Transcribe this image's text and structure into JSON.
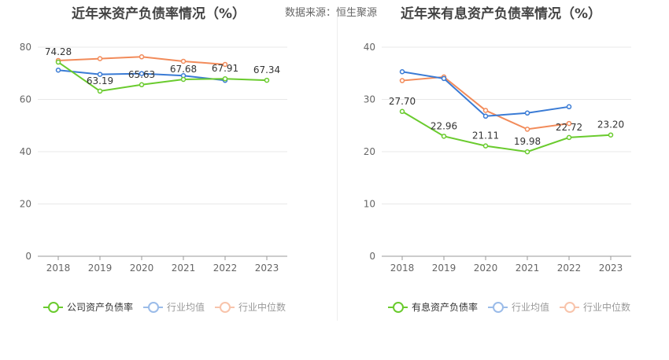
{
  "titles": {
    "left": "近年来资产负债率情况（%）",
    "right": "近年来有息资产负债率情况（%）"
  },
  "source_text": "数据来源：恒生聚源",
  "colors": {
    "primary": "#6acb2e",
    "average": "#3a7bd5",
    "median": "#f28b5a",
    "grid": "#e8e8e8",
    "axis": "#666666"
  },
  "legend": {
    "left": [
      "公司资产负债率",
      "行业均值",
      "行业中位数"
    ],
    "right": [
      "有息资产负债率",
      "行业均值",
      "行业中位数"
    ]
  },
  "chart_data": [
    {
      "type": "line",
      "title": "近年来资产负债率情况（%）",
      "categories": [
        "2018",
        "2019",
        "2020",
        "2021",
        "2022",
        "2023"
      ],
      "ylim": [
        0,
        80
      ],
      "yticks": [
        0,
        20,
        40,
        60,
        80
      ],
      "grid": true,
      "legend_position": "bottom",
      "series": [
        {
          "name": "公司资产负债率",
          "values": [
            74.28,
            63.19,
            65.63,
            67.68,
            67.91,
            67.34
          ],
          "labels": [
            "74.28",
            "63.19",
            "65.63",
            "67.68",
            "67.91",
            "67.34"
          ]
        },
        {
          "name": "行业均值",
          "values": [
            71.2,
            69.6,
            69.9,
            69.1,
            67.3,
            null
          ]
        },
        {
          "name": "行业中位数",
          "values": [
            74.9,
            75.6,
            76.3,
            74.6,
            73.4,
            null
          ]
        }
      ]
    },
    {
      "type": "line",
      "title": "近年来有息资产负债率情况（%）",
      "categories": [
        "2018",
        "2019",
        "2020",
        "2021",
        "2022",
        "2023"
      ],
      "ylim": [
        0,
        40
      ],
      "yticks": [
        0,
        10,
        20,
        30,
        40
      ],
      "grid": true,
      "legend_position": "bottom",
      "series": [
        {
          "name": "有息资产负债率",
          "values": [
            27.7,
            22.96,
            21.11,
            19.98,
            22.72,
            23.2
          ],
          "labels": [
            "27.70",
            "22.96",
            "21.11",
            "19.98",
            "22.72",
            "23.20"
          ]
        },
        {
          "name": "行业均值",
          "values": [
            35.3,
            34.0,
            26.8,
            27.4,
            28.6,
            null
          ]
        },
        {
          "name": "行业中位数",
          "values": [
            33.6,
            34.3,
            27.9,
            24.3,
            25.4,
            null
          ]
        }
      ]
    }
  ]
}
